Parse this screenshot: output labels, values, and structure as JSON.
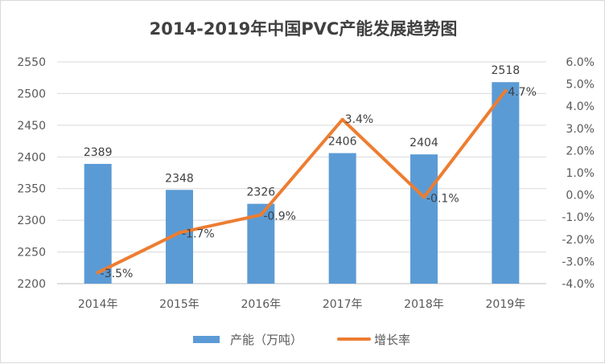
{
  "chart_data": {
    "type": "bar+line",
    "title": "2014-2019年中国PVC产能发展趋势图",
    "categories": [
      "2014年",
      "2015年",
      "2016年",
      "2017年",
      "2018年",
      "2019年"
    ],
    "series": [
      {
        "name": "产能（万吨）",
        "type": "bar",
        "axis": "left",
        "color": "#5b9bd5",
        "values": [
          2389,
          2348,
          2326,
          2406,
          2404,
          2518
        ],
        "labels": [
          "2389",
          "2348",
          "2326",
          "2406",
          "2404",
          "2518"
        ]
      },
      {
        "name": "增长率",
        "type": "line",
        "axis": "right",
        "color": "#ed7d31",
        "values": [
          -3.5,
          -1.7,
          -0.9,
          3.4,
          -0.1,
          4.7
        ],
        "labels": [
          "-3.5%",
          "-1.7%",
          "-0.9%",
          "3.4%",
          "-0.1%",
          "4.7%"
        ]
      }
    ],
    "left_axis": {
      "ylim": [
        2200,
        2550
      ],
      "ticks": [
        "2200",
        "2250",
        "2300",
        "2350",
        "2400",
        "2450",
        "2500",
        "2550"
      ]
    },
    "right_axis": {
      "ylim": [
        -4.0,
        6.0
      ],
      "ticks": [
        "-4.0%",
        "-3.0%",
        "-2.0%",
        "-1.0%",
        "0.0%",
        "1.0%",
        "2.0%",
        "3.0%",
        "4.0%",
        "5.0%",
        "6.0%"
      ]
    },
    "grid": true,
    "legend": "bottom"
  }
}
